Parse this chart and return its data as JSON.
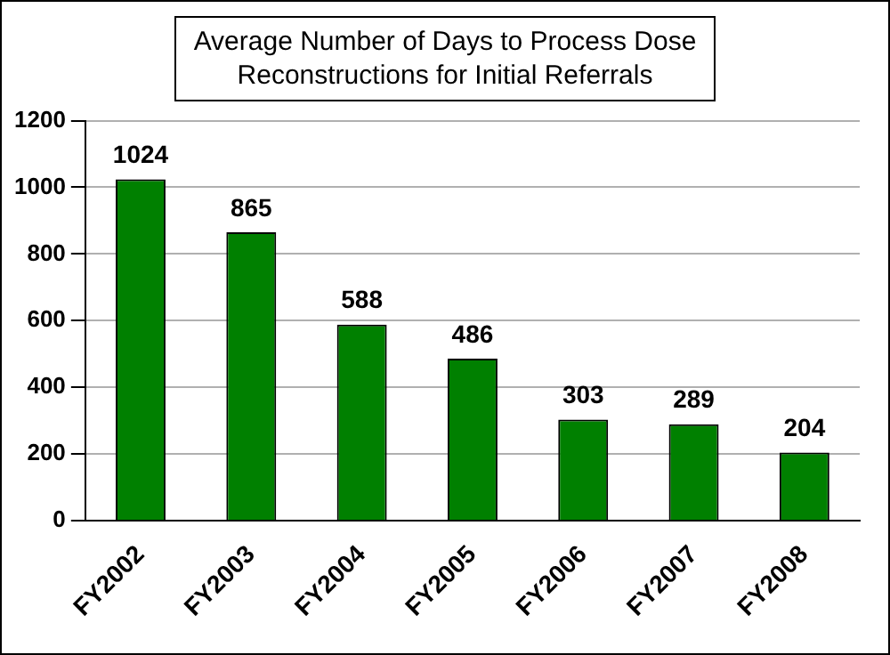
{
  "chart_data": {
    "type": "bar",
    "title": "Average Number of Days to Process Dose Reconstructions for Initial Referrals",
    "categories": [
      "FY2002",
      "FY2003",
      "FY2004",
      "FY2005",
      "FY2006",
      "FY2007",
      "FY2008"
    ],
    "values": [
      1024,
      865,
      588,
      486,
      303,
      289,
      204
    ],
    "color": "#008000",
    "ylim": [
      0,
      1200
    ],
    "yticks": [
      0,
      200,
      400,
      600,
      800,
      1000,
      1200
    ],
    "grid": "y",
    "data_labels": true
  }
}
